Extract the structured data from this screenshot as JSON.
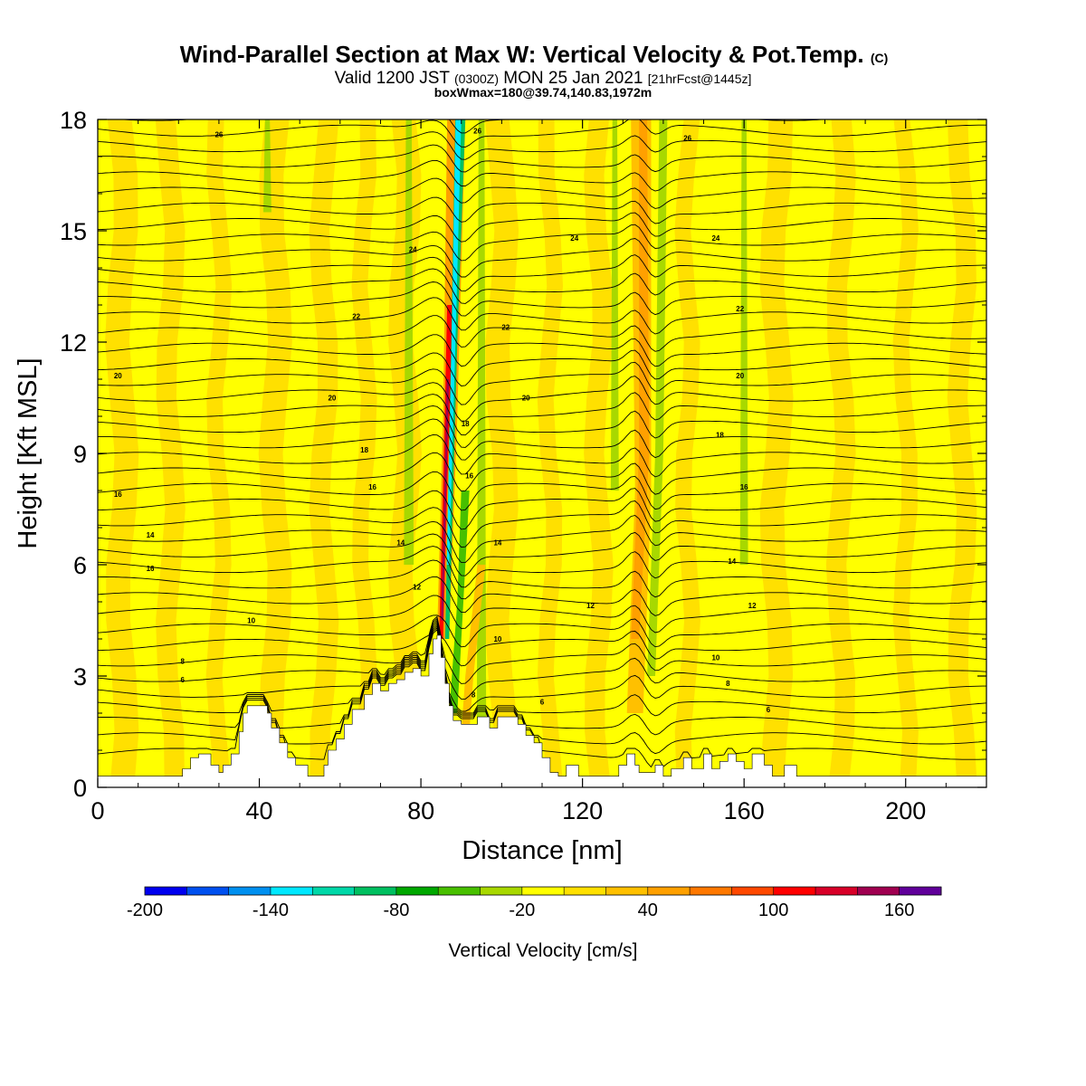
{
  "title": "Wind-Parallel Section at Max W: Vertical Velocity & Pot.Temp.",
  "title_units": "(C)",
  "subtitle_valid": "Valid 1200 JST",
  "subtitle_utc": "(0300Z)",
  "subtitle_date": "MON 25 Jan 2021",
  "subtitle_fcst": "[21hrFcst@1445z]",
  "subtitle_box": "boxWmax=180@39.74,140.83,1972m",
  "chart_data": {
    "type": "heatmap",
    "xlabel": "Distance [nm]",
    "ylabel": "Height [Kft MSL]",
    "xlim": [
      0,
      220
    ],
    "ylim": [
      0,
      18
    ],
    "x_ticks": [
      0,
      40,
      80,
      120,
      160,
      200
    ],
    "y_ticks": [
      0,
      3,
      6,
      9,
      12,
      15,
      18
    ],
    "colorbar": {
      "label": "Vertical Velocity [cm/s]",
      "min": -200,
      "max": 180,
      "step": 20,
      "tick_values": [
        -200,
        -140,
        -80,
        -20,
        40,
        100,
        160
      ],
      "colors": [
        "#0000f0",
        "#0050f0",
        "#0090f0",
        "#00e8ff",
        "#00d8a8",
        "#00c060",
        "#00a800",
        "#48c000",
        "#a8d800",
        "#ffff00",
        "#ffe000",
        "#ffc000",
        "#ffa000",
        "#ff7800",
        "#ff4800",
        "#ff0000",
        "#d80028",
        "#a00050",
        "#60009a"
      ]
    },
    "field_features": [
      {
        "x": 86,
        "w": 140,
        "label": "max updraft"
      },
      {
        "x": 87.5,
        "w": -140,
        "label": "downdraft"
      },
      {
        "x": 134,
        "w": 50,
        "label": "updraft"
      },
      {
        "x": 138,
        "w": -40,
        "label": "downdraft"
      }
    ],
    "contour_labels": [
      {
        "x": 30,
        "y": 17.6,
        "text": "26"
      },
      {
        "x": 94,
        "y": 17.7,
        "text": "26"
      },
      {
        "x": 146,
        "y": 17.5,
        "text": "26"
      },
      {
        "x": 78,
        "y": 14.5,
        "text": "24"
      },
      {
        "x": 118,
        "y": 14.8,
        "text": "24"
      },
      {
        "x": 153,
        "y": 14.8,
        "text": "24"
      },
      {
        "x": 64,
        "y": 12.7,
        "text": "22"
      },
      {
        "x": 101,
        "y": 12.4,
        "text": "22"
      },
      {
        "x": 159,
        "y": 12.9,
        "text": "22"
      },
      {
        "x": 5,
        "y": 11.1,
        "text": "20"
      },
      {
        "x": 58,
        "y": 10.5,
        "text": "20"
      },
      {
        "x": 106,
        "y": 10.5,
        "text": "20"
      },
      {
        "x": 159,
        "y": 11.1,
        "text": "20"
      },
      {
        "x": 66,
        "y": 9.1,
        "text": "18"
      },
      {
        "x": 91,
        "y": 9.8,
        "text": "18"
      },
      {
        "x": 154,
        "y": 9.5,
        "text": "18"
      },
      {
        "x": 5,
        "y": 7.9,
        "text": "16"
      },
      {
        "x": 68,
        "y": 8.1,
        "text": "16"
      },
      {
        "x": 92,
        "y": 8.4,
        "text": "16"
      },
      {
        "x": 160,
        "y": 8.1,
        "text": "16"
      },
      {
        "x": 13,
        "y": 6.8,
        "text": "14"
      },
      {
        "x": 75,
        "y": 6.6,
        "text": "14"
      },
      {
        "x": 99,
        "y": 6.6,
        "text": "14"
      },
      {
        "x": 157,
        "y": 6.1,
        "text": "14"
      },
      {
        "x": 13,
        "y": 5.9,
        "text": "16"
      },
      {
        "x": 79,
        "y": 5.4,
        "text": "12"
      },
      {
        "x": 122,
        "y": 4.9,
        "text": "12"
      },
      {
        "x": 162,
        "y": 4.9,
        "text": "12"
      },
      {
        "x": 38,
        "y": 4.5,
        "text": "10"
      },
      {
        "x": 99,
        "y": 4.0,
        "text": "10"
      },
      {
        "x": 153,
        "y": 3.5,
        "text": "10"
      },
      {
        "x": 21,
        "y": 3.4,
        "text": "8"
      },
      {
        "x": 21,
        "y": 2.9,
        "text": "6"
      },
      {
        "x": 93,
        "y": 2.5,
        "text": "8"
      },
      {
        "x": 156,
        "y": 2.8,
        "text": "8"
      },
      {
        "x": 110,
        "y": 2.3,
        "text": "6"
      },
      {
        "x": 166,
        "y": 2.1,
        "text": "6"
      }
    ],
    "terrain": [
      [
        0,
        0.3
      ],
      [
        21,
        0.3
      ],
      [
        21,
        0.5
      ],
      [
        23,
        0.5
      ],
      [
        23,
        0.8
      ],
      [
        25,
        0.8
      ],
      [
        25,
        0.9
      ],
      [
        28,
        0.9
      ],
      [
        28,
        0.6
      ],
      [
        30,
        0.6
      ],
      [
        30,
        0.4
      ],
      [
        31,
        0.4
      ],
      [
        31,
        0.6
      ],
      [
        33,
        0.6
      ],
      [
        33,
        0.9
      ],
      [
        35,
        0.9
      ],
      [
        35,
        1.5
      ],
      [
        36,
        1.5
      ],
      [
        36,
        2.0
      ],
      [
        37,
        2.0
      ],
      [
        37,
        2.2
      ],
      [
        42,
        2.2
      ],
      [
        42,
        2.0
      ],
      [
        43,
        2.0
      ],
      [
        43,
        1.6
      ],
      [
        45,
        1.6
      ],
      [
        45,
        1.2
      ],
      [
        47,
        1.2
      ],
      [
        47,
        0.8
      ],
      [
        49,
        0.8
      ],
      [
        49,
        0.6
      ],
      [
        52,
        0.6
      ],
      [
        52,
        0.3
      ],
      [
        56,
        0.3
      ],
      [
        56,
        0.6
      ],
      [
        57,
        0.6
      ],
      [
        57,
        1.0
      ],
      [
        59,
        1.0
      ],
      [
        59,
        1.3
      ],
      [
        61,
        1.3
      ],
      [
        61,
        1.7
      ],
      [
        63,
        1.7
      ],
      [
        63,
        2.1
      ],
      [
        66,
        2.1
      ],
      [
        66,
        2.5
      ],
      [
        68,
        2.5
      ],
      [
        68,
        2.8
      ],
      [
        70,
        2.8
      ],
      [
        70,
        2.6
      ],
      [
        72,
        2.6
      ],
      [
        72,
        2.8
      ],
      [
        74,
        2.8
      ],
      [
        74,
        2.9
      ],
      [
        76,
        2.9
      ],
      [
        76,
        3.1
      ],
      [
        78,
        3.1
      ],
      [
        78,
        3.2
      ],
      [
        80,
        3.2
      ],
      [
        80,
        3.0
      ],
      [
        82,
        3.0
      ],
      [
        82,
        3.6
      ],
      [
        83,
        3.6
      ],
      [
        83,
        4.0
      ],
      [
        84,
        4.0
      ],
      [
        84,
        4.1
      ],
      [
        85,
        4.1
      ],
      [
        85,
        3.5
      ],
      [
        86,
        3.5
      ],
      [
        86,
        2.8
      ],
      [
        87,
        2.8
      ],
      [
        87,
        2.2
      ],
      [
        88,
        2.2
      ],
      [
        88,
        1.8
      ],
      [
        90,
        1.8
      ],
      [
        90,
        1.7
      ],
      [
        94,
        1.7
      ],
      [
        94,
        1.9
      ],
      [
        97,
        1.9
      ],
      [
        97,
        1.6
      ],
      [
        99,
        1.6
      ],
      [
        99,
        1.9
      ],
      [
        104,
        1.9
      ],
      [
        104,
        1.7
      ],
      [
        106,
        1.7
      ],
      [
        106,
        1.4
      ],
      [
        108,
        1.4
      ],
      [
        108,
        1.2
      ],
      [
        110,
        1.2
      ],
      [
        110,
        0.8
      ],
      [
        112,
        0.8
      ],
      [
        112,
        0.4
      ],
      [
        114,
        0.4
      ],
      [
        114,
        0.3
      ],
      [
        116,
        0.3
      ],
      [
        116,
        0.6
      ],
      [
        119,
        0.6
      ],
      [
        119,
        0.3
      ],
      [
        129,
        0.3
      ],
      [
        129,
        0.6
      ],
      [
        131,
        0.6
      ],
      [
        131,
        0.9
      ],
      [
        133,
        0.9
      ],
      [
        133,
        0.6
      ],
      [
        134,
        0.6
      ],
      [
        134,
        0.4
      ],
      [
        138,
        0.4
      ],
      [
        138,
        0.6
      ],
      [
        140,
        0.6
      ],
      [
        140,
        0.3
      ],
      [
        142,
        0.3
      ],
      [
        142,
        0.5
      ],
      [
        145,
        0.5
      ],
      [
        145,
        0.8
      ],
      [
        147,
        0.8
      ],
      [
        147,
        0.5
      ],
      [
        150,
        0.5
      ],
      [
        150,
        0.9
      ],
      [
        152,
        0.9
      ],
      [
        152,
        0.5
      ],
      [
        154,
        0.5
      ],
      [
        154,
        0.7
      ],
      [
        156,
        0.7
      ],
      [
        156,
        0.9
      ],
      [
        158,
        0.9
      ],
      [
        158,
        0.7
      ],
      [
        160,
        0.7
      ],
      [
        160,
        0.5
      ],
      [
        162,
        0.5
      ],
      [
        162,
        0.9
      ],
      [
        165,
        0.9
      ],
      [
        165,
        0.6
      ],
      [
        167,
        0.6
      ],
      [
        167,
        0.3
      ],
      [
        170,
        0.3
      ],
      [
        170,
        0.6
      ],
      [
        173,
        0.6
      ],
      [
        173,
        0.3
      ],
      [
        220,
        0.3
      ]
    ]
  }
}
